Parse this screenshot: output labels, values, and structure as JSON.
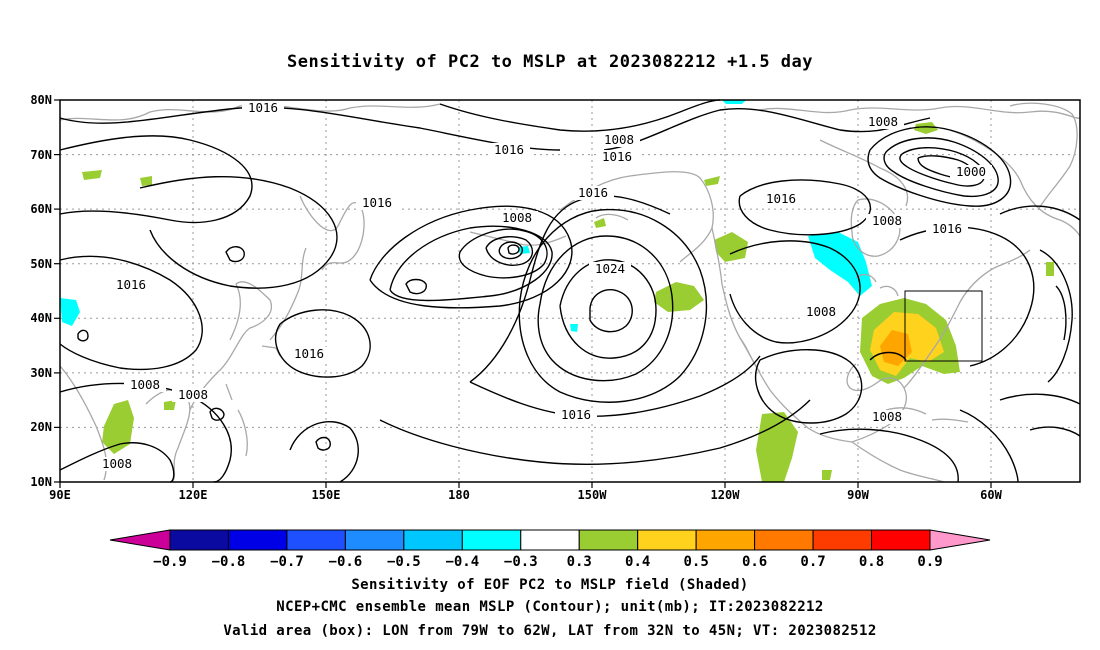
{
  "title": "Sensitivity of PC2 to MSLP at 2023082212 +1.5 day",
  "map": {
    "lon_labels": [
      "90E",
      "120E",
      "150E",
      "180",
      "150W",
      "120W",
      "90W",
      "60W"
    ],
    "lat_labels": [
      "80N",
      "70N",
      "60N",
      "50N",
      "40N",
      "30N",
      "20N",
      "10N"
    ],
    "contour_labels": [
      "1016",
      "1016",
      "1016",
      "1016",
      "1016",
      "1016",
      "1016",
      "1016",
      "1016",
      "1008",
      "1008",
      "1008",
      "1008",
      "1008",
      "1008",
      "1008",
      "1008",
      "1000",
      "1024"
    ],
    "grid": true,
    "valid_box": {
      "lon_from": "79W",
      "lon_to": "62W",
      "lat_from": "32N",
      "lat_to": "45N"
    }
  },
  "colorbar": {
    "labels": [
      "−0.9",
      "−0.8",
      "−0.7",
      "−0.6",
      "−0.5",
      "−0.4",
      "−0.3",
      "0.3",
      "0.4",
      "0.5",
      "0.6",
      "0.7",
      "0.8",
      "0.9"
    ],
    "colors": [
      "#cc0099",
      "#0a0aa0",
      "#0000e6",
      "#1e50ff",
      "#1e8cff",
      "#00c8ff",
      "#00ffff",
      "#ffffff",
      "#9acd32",
      "#ffd21e",
      "#ffa500",
      "#ff7800",
      "#ff3c00",
      "#ff0000",
      "#ff99cc"
    ]
  },
  "caption": {
    "line1": "Sensitivity of EOF PC2 to MSLP field (Shaded)",
    "line2": "NCEP+CMC ensemble mean MSLP (Contour); unit(mb); IT:2023082212",
    "line3": "Valid area (box): LON from 79W to 62W, LAT from 32N to 45N; VT: 2023082512"
  }
}
